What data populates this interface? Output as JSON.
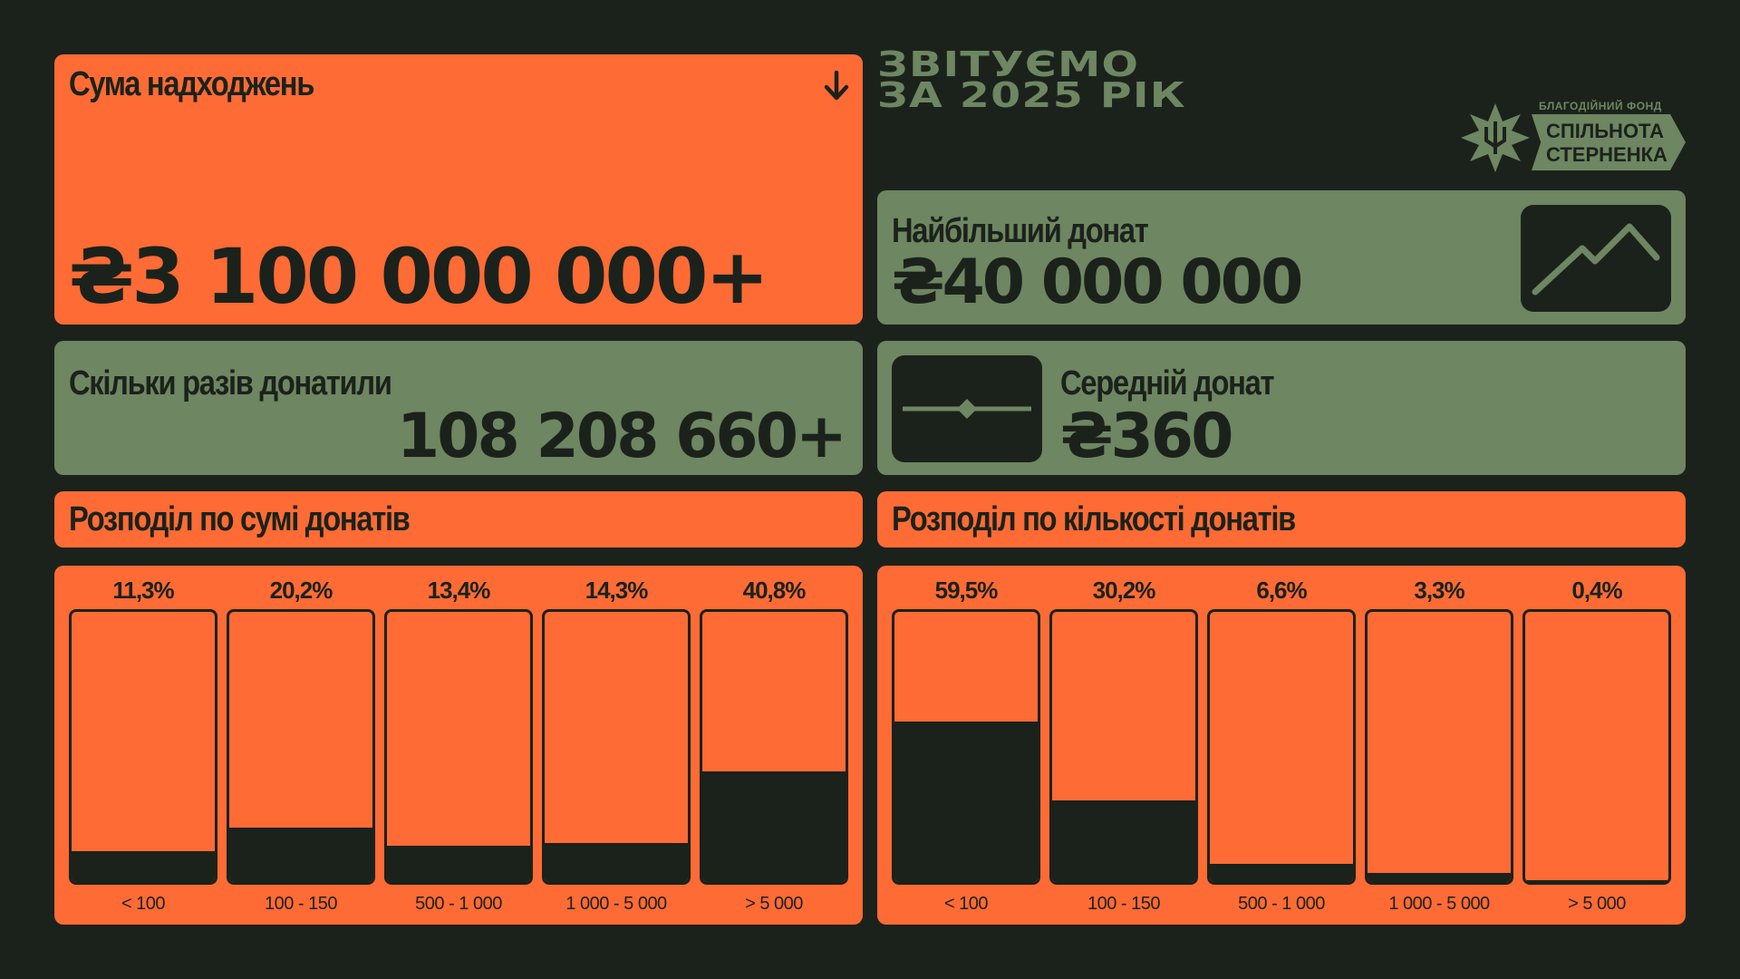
{
  "header": {
    "line1": "ЗВІТУЄМО",
    "line2": "ЗА 2025 РІК"
  },
  "logo": {
    "small": "БЛАГОДІЙНИЙ ФОНД",
    "line1": "СПІЛЬНОТА",
    "line2": "СТЕРНЕНКА",
    "icon": "trident-star-icon"
  },
  "total": {
    "title": "Сума надходжень",
    "value": "₴3 100 000 000+",
    "icon": "arrow-down-icon"
  },
  "largest": {
    "title": "Найбільший донат",
    "value": "₴40 000 000",
    "icon": "trend-up-icon"
  },
  "count": {
    "title": "Скільки разів донатили",
    "value": "108 208 660+"
  },
  "average": {
    "title": "Середній донат",
    "value": "₴360",
    "icon": "slider-diamond-icon"
  },
  "colors": {
    "orange": "#fe6b35",
    "green": "#6e8661",
    "dark": "#1b221b"
  },
  "chart_data": [
    {
      "type": "bar",
      "title": "Розподіл по сумі донатів",
      "categories": [
        "< 100",
        "100 - 150",
        "500 - 1 000",
        "1 000 - 5 000",
        "> 5 000"
      ],
      "values": [
        11.3,
        20.2,
        13.4,
        14.3,
        40.8
      ],
      "labels": [
        "11,3%",
        "20,2%",
        "13,4%",
        "14,3%",
        "40,8%"
      ],
      "ylim": [
        0,
        100
      ]
    },
    {
      "type": "bar",
      "title": "Розподіл по кількості донатів",
      "categories": [
        "< 100",
        "100 - 150",
        "500 - 1 000",
        "1 000 - 5 000",
        "> 5 000"
      ],
      "values": [
        59.5,
        30.2,
        6.6,
        3.3,
        0.4
      ],
      "labels": [
        "59,5%",
        "30,2%",
        "6,6%",
        "3,3%",
        "0,4%"
      ],
      "ylim": [
        0,
        100
      ]
    }
  ]
}
